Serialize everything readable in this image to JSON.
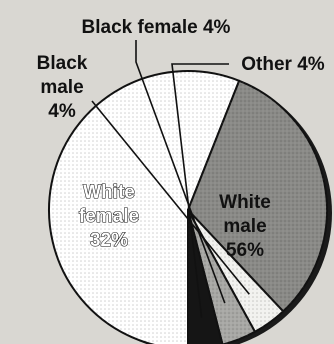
{
  "chart_data": {
    "type": "pie",
    "unit": "%",
    "slices": [
      {
        "name": "White male",
        "value": 56,
        "line1": "White",
        "line2": "male",
        "pct": "56%",
        "fill": "#ffffff"
      },
      {
        "name": "White female",
        "value": 32,
        "line1": "White",
        "line2": "female",
        "pct": "32%",
        "fill": "#8a8a87"
      },
      {
        "name": "Black male",
        "value": 4,
        "line1": "Black",
        "line2": "male",
        "pct": "4%",
        "fill": "#f2f2ef"
      },
      {
        "name": "Black female",
        "value": 4,
        "text": "Black female 4%",
        "fill": "#a8a8a5"
      },
      {
        "name": "Other",
        "value": 4,
        "text": "Other 4%",
        "fill": "#151515"
      }
    ]
  }
}
